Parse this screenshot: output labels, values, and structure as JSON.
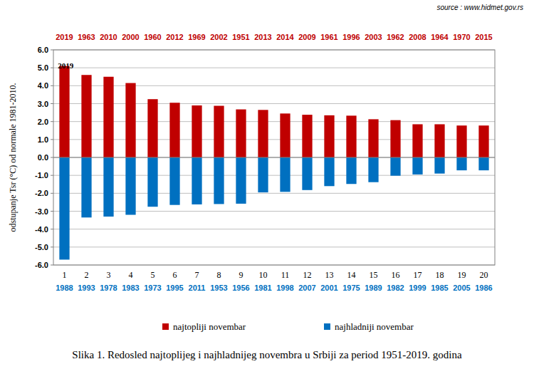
{
  "chart_data": {
    "type": "bar",
    "title": "Slika 1. Redosled najtoplijeg i najhladnijeg novembra u Srbiji za period 1951-2019. godina",
    "subtitle": "source : www.hidmet.gov.rs",
    "y_label": "odstupanje Tsr (°C) od normale 1981-2010.",
    "categories": [
      "1",
      "2",
      "3",
      "4",
      "5",
      "6",
      "7",
      "8",
      "9",
      "10",
      "11",
      "12",
      "13",
      "14",
      "15",
      "16",
      "17",
      "18",
      "19",
      "20"
    ],
    "series": [
      {
        "name": "najtopliji novembar",
        "color": "#c00000",
        "values": [
          5.1,
          4.6,
          4.5,
          4.15,
          3.25,
          3.05,
          2.9,
          2.88,
          2.68,
          2.65,
          2.45,
          2.38,
          2.35,
          2.33,
          2.13,
          2.08,
          1.85,
          1.85,
          1.78,
          1.78
        ],
        "labels": [
          "2019",
          "1963",
          "2010",
          "2000",
          "1960",
          "2012",
          "1969",
          "2002",
          "1951",
          "2013",
          "2014",
          "2009",
          "1961",
          "1996",
          "2003",
          "1962",
          "2008",
          "1964",
          "1970",
          "2015"
        ]
      },
      {
        "name": "najhladniji novembar",
        "color": "#0070c0",
        "values": [
          -5.7,
          -3.35,
          -3.3,
          -3.2,
          -2.75,
          -2.65,
          -2.62,
          -2.6,
          -2.58,
          -1.95,
          -1.92,
          -1.82,
          -1.6,
          -1.48,
          -1.38,
          -1.02,
          -0.95,
          -0.9,
          -0.72,
          -0.72
        ],
        "labels": [
          "1988",
          "1993",
          "1978",
          "1983",
          "1973",
          "1995",
          "2011",
          "1953",
          "1956",
          "1981",
          "1998",
          "2007",
          "2001",
          "1975",
          "1989",
          "1982",
          "1999",
          "1985",
          "2005",
          "1986"
        ]
      }
    ],
    "annotations": [
      {
        "text": "2019",
        "x": "1"
      }
    ],
    "ylim": [
      -6,
      6
    ],
    "yticks": [
      {
        "value": -6,
        "label": "-6.0"
      },
      {
        "value": -5,
        "label": "-5.0"
      },
      {
        "value": -4,
        "label": "-4.0"
      },
      {
        "value": -3,
        "label": "-3.0"
      },
      {
        "value": -2,
        "label": "-2.0"
      },
      {
        "value": -1,
        "label": "-1.0"
      },
      {
        "value": 0,
        "label": "0.0"
      },
      {
        "value": 1,
        "label": "1.0"
      },
      {
        "value": 2,
        "label": "2.0"
      },
      {
        "value": 3,
        "label": "3.0"
      },
      {
        "value": 4,
        "label": "4.0"
      },
      {
        "value": 5,
        "label": "5.0"
      },
      {
        "value": 6,
        "label": "6.0"
      }
    ],
    "grid": true,
    "legend": "bottom"
  }
}
